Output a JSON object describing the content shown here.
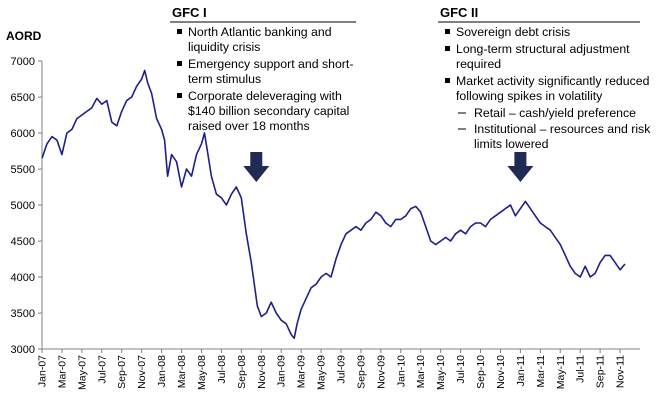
{
  "chart_data": {
    "type": "line",
    "title": "",
    "ylabel": "AORD",
    "xlabel": "",
    "ylim": [
      3000,
      7000
    ],
    "yticks": [
      3000,
      3500,
      4000,
      4500,
      5000,
      5500,
      6000,
      6500,
      7000
    ],
    "x_start": "Jan-07",
    "x_ticks": [
      "Jan-07",
      "Mar-07",
      "May-07",
      "Jul-07",
      "Sep-07",
      "Nov-07",
      "Jan-08",
      "Mar-08",
      "May-08",
      "Jul-08",
      "Sep-08",
      "Nov-08",
      "Jan-09",
      "Mar-09",
      "May-09",
      "Jul-09",
      "Sep-09",
      "Nov-09",
      "Jan-10",
      "Mar-10",
      "May-10",
      "Jul-10",
      "Sep-10",
      "Nov-10",
      "Jan-11",
      "Mar-11",
      "May-11",
      "Jul-11",
      "Sep-11",
      "Nov-11"
    ],
    "series": [
      {
        "name": "AORD",
        "color": "#1f1f8c",
        "points": [
          [
            0,
            5650
          ],
          [
            0.5,
            5850
          ],
          [
            1,
            5950
          ],
          [
            1.5,
            5900
          ],
          [
            2,
            5700
          ],
          [
            2.5,
            6000
          ],
          [
            3,
            6050
          ],
          [
            3.5,
            6200
          ],
          [
            4,
            6250
          ],
          [
            4.5,
            6300
          ],
          [
            5,
            6350
          ],
          [
            5.5,
            6480
          ],
          [
            6,
            6400
          ],
          [
            6.5,
            6450
          ],
          [
            7,
            6150
          ],
          [
            7.5,
            6100
          ],
          [
            8,
            6300
          ],
          [
            8.5,
            6450
          ],
          [
            9,
            6500
          ],
          [
            9.5,
            6650
          ],
          [
            10,
            6750
          ],
          [
            10.3,
            6870
          ],
          [
            10.6,
            6700
          ],
          [
            11,
            6550
          ],
          [
            11.5,
            6200
          ],
          [
            12,
            6050
          ],
          [
            12.3,
            5900
          ],
          [
            12.6,
            5400
          ],
          [
            13,
            5700
          ],
          [
            13.5,
            5600
          ],
          [
            14,
            5250
          ],
          [
            14.5,
            5500
          ],
          [
            15,
            5400
          ],
          [
            15.5,
            5700
          ],
          [
            16,
            5850
          ],
          [
            16.3,
            6000
          ],
          [
            16.6,
            5750
          ],
          [
            17,
            5400
          ],
          [
            17.5,
            5150
          ],
          [
            18,
            5100
          ],
          [
            18.5,
            5000
          ],
          [
            19,
            5150
          ],
          [
            19.5,
            5250
          ],
          [
            20,
            5100
          ],
          [
            20.5,
            4600
          ],
          [
            21,
            4200
          ],
          [
            21.3,
            3900
          ],
          [
            21.6,
            3600
          ],
          [
            22,
            3450
          ],
          [
            22.5,
            3500
          ],
          [
            23,
            3650
          ],
          [
            23.5,
            3500
          ],
          [
            24,
            3400
          ],
          [
            24.5,
            3350
          ],
          [
            25,
            3200
          ],
          [
            25.3,
            3150
          ],
          [
            25.6,
            3350
          ],
          [
            26,
            3550
          ],
          [
            26.5,
            3700
          ],
          [
            27,
            3850
          ],
          [
            27.5,
            3900
          ],
          [
            28,
            4000
          ],
          [
            28.5,
            4050
          ],
          [
            29,
            4000
          ],
          [
            29.5,
            4250
          ],
          [
            30,
            4450
          ],
          [
            30.5,
            4600
          ],
          [
            31,
            4650
          ],
          [
            31.5,
            4700
          ],
          [
            32,
            4650
          ],
          [
            32.5,
            4750
          ],
          [
            33,
            4800
          ],
          [
            33.5,
            4900
          ],
          [
            34,
            4850
          ],
          [
            34.5,
            4750
          ],
          [
            35,
            4700
          ],
          [
            35.5,
            4800
          ],
          [
            36,
            4800
          ],
          [
            36.5,
            4850
          ],
          [
            37,
            4950
          ],
          [
            37.5,
            4980
          ],
          [
            38,
            4900
          ],
          [
            38.5,
            4700
          ],
          [
            39,
            4500
          ],
          [
            39.5,
            4450
          ],
          [
            40,
            4500
          ],
          [
            40.5,
            4550
          ],
          [
            41,
            4500
          ],
          [
            41.5,
            4600
          ],
          [
            42,
            4650
          ],
          [
            42.5,
            4600
          ],
          [
            43,
            4700
          ],
          [
            43.5,
            4750
          ],
          [
            44,
            4750
          ],
          [
            44.5,
            4700
          ],
          [
            45,
            4800
          ],
          [
            45.5,
            4850
          ],
          [
            46,
            4900
          ],
          [
            46.5,
            4950
          ],
          [
            47,
            5000
          ],
          [
            47.5,
            4850
          ],
          [
            48,
            4950
          ],
          [
            48.5,
            5050
          ],
          [
            49,
            4950
          ],
          [
            49.5,
            4850
          ],
          [
            50,
            4750
          ],
          [
            50.5,
            4700
          ],
          [
            51,
            4650
          ],
          [
            51.5,
            4550
          ],
          [
            52,
            4450
          ],
          [
            52.5,
            4300
          ],
          [
            53,
            4150
          ],
          [
            53.5,
            4050
          ],
          [
            54,
            4000
          ],
          [
            54.5,
            4150
          ],
          [
            55,
            4000
          ],
          [
            55.5,
            4050
          ],
          [
            56,
            4200
          ],
          [
            56.5,
            4300
          ],
          [
            57,
            4300
          ],
          [
            57.5,
            4200
          ],
          [
            58,
            4100
          ],
          [
            58.5,
            4180
          ]
        ]
      }
    ]
  },
  "annotations": [
    {
      "title": "GFC I",
      "bullets": [
        {
          "lines": [
            "North Atlantic banking and",
            "liquidity crisis"
          ]
        },
        {
          "lines": [
            "Emergency support and short-",
            "term stimulus"
          ]
        },
        {
          "lines": [
            "Corporate deleveraging with",
            "$140 billion secondary capital",
            "raised over 18 months"
          ]
        }
      ]
    },
    {
      "title": "GFC II",
      "bullets": [
        {
          "lines": [
            "Sovereign debt crisis"
          ]
        },
        {
          "lines": [
            "Long-term structural adjustment",
            "required"
          ]
        },
        {
          "lines": [
            "Market activity significantly reduced",
            "following spikes in volatility"
          ]
        }
      ],
      "sub_bullets": [
        {
          "lines": [
            "Retail – cash/yield preference"
          ]
        },
        {
          "lines": [
            "Institutional – resources and risk",
            "limits lowered"
          ]
        }
      ]
    }
  ],
  "arrows": [
    {
      "name": "gfc-1-arrow",
      "x": 21.5
    },
    {
      "name": "gfc-2-arrow",
      "x": 48
    }
  ],
  "colors": {
    "line": "#1f1f8c",
    "arrow": "#1f2a55",
    "axis": "#808080"
  }
}
